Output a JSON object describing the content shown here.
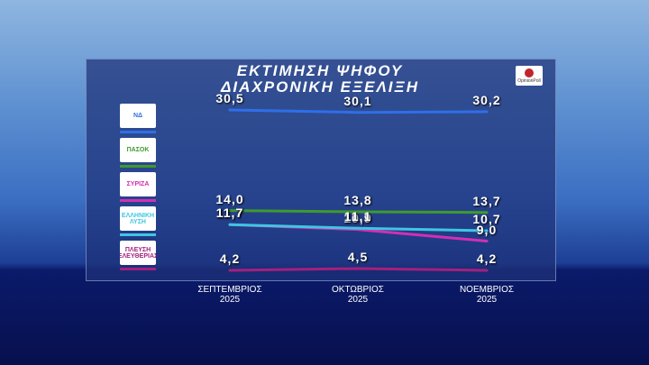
{
  "chart_data": {
    "type": "line",
    "title": "ΕΚΤΙΜΗΣΗ ΨΗΦΟΥ",
    "subtitle": "ΔΙΑΧΡΟΝΙΚΗ ΕΞΕΛΙΞΗ",
    "source": "OpinionPoll",
    "categories": [
      "ΣΕΠΤΕΜΒΡΙΟΣ\n2025",
      "ΟΚΤΩΒΡΙΟΣ\n2025",
      "ΝΟΕΜΒΡΙΟΣ\n2025"
    ],
    "series": [
      {
        "name": "ΝΔ",
        "color": "#2f6fe8",
        "values": [
          30.5,
          30.1,
          30.2
        ],
        "value_labels": [
          "30,5",
          "30,1",
          "30,2"
        ]
      },
      {
        "name": "ΠΑΣΟΚ",
        "color": "#3f9a2c",
        "values": [
          14.0,
          13.8,
          13.7
        ],
        "value_labels": [
          "14,0",
          "13,8",
          "13,7"
        ]
      },
      {
        "name": "ΣΥΡΙΖΑ",
        "color": "#d22fb4",
        "values": [
          11.7,
          10.9,
          9.0
        ],
        "value_labels": [
          "11,7",
          "10,9",
          "9,0"
        ]
      },
      {
        "name": "ΕΛΛΗΝΙΚΗ ΛΥΣΗ",
        "color": "#3fc6e2",
        "values": [
          11.7,
          11.1,
          10.7
        ],
        "value_labels": [
          "11,7",
          "11,1",
          "10,7"
        ]
      },
      {
        "name": "ΠΛΕΥΣΗ ΕΛΕΥΘΕΡΙΑΣ",
        "color": "#a3207e",
        "values": [
          4.2,
          4.5,
          4.2
        ],
        "value_labels": [
          "4,2",
          "4,5",
          "4,2"
        ]
      }
    ]
  }
}
